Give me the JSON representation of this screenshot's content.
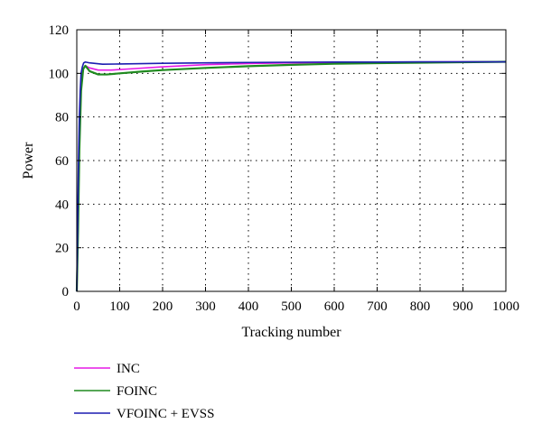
{
  "chart_data": {
    "type": "line",
    "title": "",
    "xlabel": "Tracking number",
    "ylabel": "Power",
    "xlim": [
      0,
      1000
    ],
    "ylim": [
      0,
      120
    ],
    "xticks": [
      0,
      100,
      200,
      300,
      400,
      500,
      600,
      700,
      800,
      900,
      1000
    ],
    "yticks": [
      0,
      20,
      40,
      60,
      80,
      100,
      120
    ],
    "grid": true,
    "legend_position": "bottom-left, below plot",
    "series": [
      {
        "name": "INC",
        "color": "#e619e6",
        "x": [
          0,
          3,
          6,
          10,
          15,
          20,
          30,
          50,
          80,
          120,
          200,
          300,
          400,
          500,
          600,
          700,
          800,
          900,
          1000
        ],
        "y": [
          0,
          30,
          70,
          95,
          102,
          103.5,
          102.5,
          101.5,
          101.5,
          102.0,
          103.0,
          104.0,
          104.5,
          104.8,
          105.0,
          105.1,
          105.2,
          105.3,
          105.3
        ]
      },
      {
        "name": "FOINC",
        "color": "#1f8a1f",
        "x": [
          0,
          3,
          6,
          10,
          15,
          20,
          30,
          50,
          70,
          100,
          150,
          200,
          300,
          400,
          500,
          600,
          700,
          800,
          900,
          1000
        ],
        "y": [
          0,
          28,
          65,
          92,
          102,
          103.5,
          101,
          99.5,
          99.5,
          100,
          100.8,
          101.5,
          102.5,
          103.3,
          103.9,
          104.4,
          104.7,
          104.9,
          105.1,
          105.3
        ]
      },
      {
        "name": "VFOINC + EVSS",
        "color": "#1c1cb0",
        "x": [
          0,
          2,
          4,
          6,
          8,
          10,
          13,
          16,
          20,
          30,
          60,
          100,
          200,
          300,
          400,
          500,
          600,
          700,
          800,
          900,
          1000
        ],
        "y": [
          0,
          30,
          60,
          80,
          92,
          100,
          103,
          104.8,
          105.2,
          104.8,
          104.2,
          104.3,
          104.6,
          104.8,
          105.0,
          105.1,
          105.2,
          105.2,
          105.3,
          105.3,
          105.3
        ]
      }
    ]
  }
}
